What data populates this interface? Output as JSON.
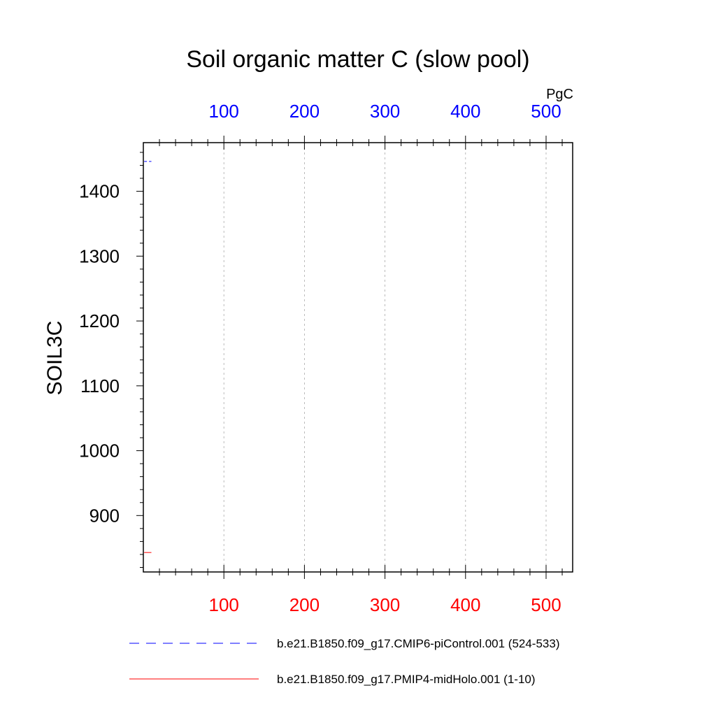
{
  "chart_data": {
    "type": "line",
    "title": "Soil organic matter C (slow pool)",
    "ylabel": "SOIL3C",
    "unit_label": "PgC",
    "xlim": [
      0,
      533
    ],
    "ylim": [
      813,
      1475
    ],
    "x_ticks": [
      100,
      200,
      300,
      400,
      500
    ],
    "x_ticks_top": [
      "100",
      "200",
      "300",
      "400",
      "500"
    ],
    "x_ticks_bottom": [
      "100",
      "200",
      "300",
      "400",
      "500"
    ],
    "y_ticks": [
      900,
      1000,
      1100,
      1200,
      1300,
      1400
    ],
    "y_tick_labels": [
      "900",
      "1000",
      "1100",
      "1200",
      "1300",
      "1400"
    ],
    "grid": "vertical-dashed",
    "legend_position": "bottom",
    "colors": {
      "top_axis": "#0000ff",
      "bottom_axis": "#ff0000"
    },
    "series": [
      {
        "name": "b.e21.B1850.f09_g17.CMIP6-piControl.001 (524-533)",
        "color": "#0000ff",
        "dash": "dashed",
        "axis": "top",
        "x": [
          1,
          2,
          3,
          4,
          5,
          6,
          7,
          8,
          9,
          10
        ],
        "y": [
          1446,
          1446,
          1446,
          1446,
          1446,
          1446,
          1446,
          1446,
          1446,
          1446
        ]
      },
      {
        "name": "b.e21.B1850.f09_g17.PMIP4-midHolo.001 (1-10)",
        "color": "#ff0000",
        "dash": "solid",
        "axis": "bottom",
        "x": [
          1,
          2,
          3,
          4,
          5,
          6,
          7,
          8,
          9,
          10
        ],
        "y": [
          843,
          843,
          843,
          843,
          843,
          843,
          843,
          843,
          843,
          843
        ]
      }
    ]
  }
}
